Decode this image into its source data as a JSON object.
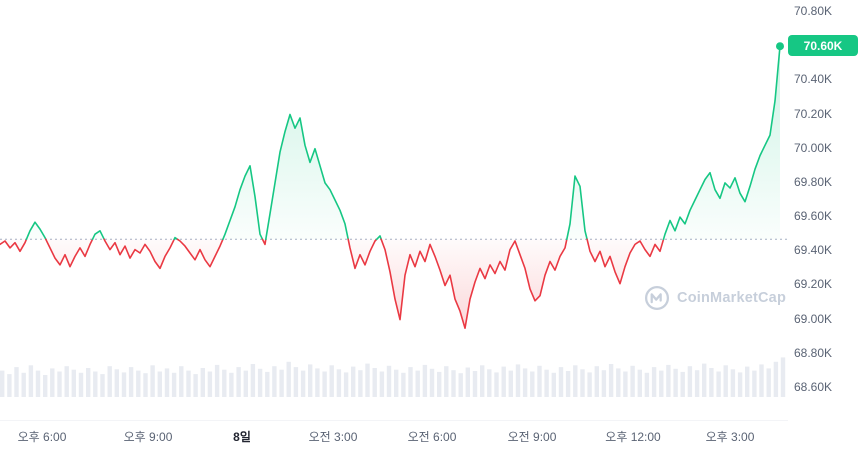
{
  "watermark": {
    "text": "CoinMarketCap"
  },
  "chart_data": {
    "type": "line",
    "title": "",
    "current_price_label": "70.60K",
    "current_price_value": 70.6,
    "baseline_value": 69.47,
    "unit": "K",
    "grid": "off",
    "legend": "none",
    "y_ticks": [
      {
        "label": "70.80K",
        "value": 70.8
      },
      {
        "label": "70.60K",
        "value": 70.6
      },
      {
        "label": "70.40K",
        "value": 70.4
      },
      {
        "label": "70.20K",
        "value": 70.2
      },
      {
        "label": "70.00K",
        "value": 70.0
      },
      {
        "label": "69.80K",
        "value": 69.8
      },
      {
        "label": "69.60K",
        "value": 69.6
      },
      {
        "label": "69.40K",
        "value": 69.4
      },
      {
        "label": "69.20K",
        "value": 69.2
      },
      {
        "label": "69.00K",
        "value": 69.0
      },
      {
        "label": "68.80K",
        "value": 68.8
      },
      {
        "label": "68.60K",
        "value": 68.6
      }
    ],
    "x_ticks": [
      {
        "label": "오후 6:00",
        "pos": 0.053,
        "bold": false
      },
      {
        "label": "오후 9:00",
        "pos": 0.188,
        "bold": false
      },
      {
        "label": "8일",
        "pos": 0.307,
        "bold": true
      },
      {
        "label": "오전 3:00",
        "pos": 0.423,
        "bold": false
      },
      {
        "label": "오전 6:00",
        "pos": 0.548,
        "bold": false
      },
      {
        "label": "오전 9:00",
        "pos": 0.675,
        "bold": false
      },
      {
        "label": "오후 12:00",
        "pos": 0.803,
        "bold": false
      },
      {
        "label": "오후 3:00",
        "pos": 0.926,
        "bold": false
      }
    ],
    "prices": [
      69.44,
      69.46,
      69.42,
      69.45,
      69.4,
      69.45,
      69.52,
      69.57,
      69.53,
      69.48,
      69.42,
      69.36,
      69.32,
      69.38,
      69.31,
      69.37,
      69.42,
      69.37,
      69.44,
      69.5,
      69.52,
      69.46,
      69.41,
      69.45,
      69.38,
      69.43,
      69.36,
      69.41,
      69.39,
      69.44,
      69.4,
      69.34,
      69.3,
      69.37,
      69.42,
      69.48,
      69.46,
      69.43,
      69.39,
      69.35,
      69.41,
      69.35,
      69.31,
      69.37,
      69.43,
      69.5,
      69.58,
      69.66,
      69.76,
      69.84,
      69.9,
      69.72,
      69.5,
      69.44,
      69.62,
      69.8,
      69.98,
      70.1,
      70.2,
      70.12,
      70.18,
      70.02,
      69.92,
      70.0,
      69.9,
      69.8,
      69.76,
      69.7,
      69.64,
      69.56,
      69.42,
      69.3,
      69.38,
      69.32,
      69.4,
      69.46,
      69.49,
      69.41,
      69.28,
      69.12,
      69.0,
      69.26,
      69.38,
      69.31,
      69.4,
      69.34,
      69.44,
      69.37,
      69.29,
      69.2,
      69.26,
      69.12,
      69.05,
      68.95,
      69.12,
      69.22,
      69.3,
      69.24,
      69.32,
      69.27,
      69.34,
      69.29,
      69.41,
      69.46,
      69.38,
      69.3,
      69.18,
      69.11,
      69.14,
      69.26,
      69.34,
      69.29,
      69.37,
      69.42,
      69.56,
      69.84,
      69.78,
      69.52,
      69.4,
      69.34,
      69.4,
      69.31,
      69.37,
      69.28,
      69.21,
      69.31,
      69.39,
      69.44,
      69.46,
      69.41,
      69.37,
      69.44,
      69.4,
      69.5,
      69.58,
      69.52,
      69.6,
      69.56,
      69.64,
      69.7,
      69.76,
      69.82,
      69.86,
      69.76,
      69.71,
      69.8,
      69.77,
      69.83,
      69.74,
      69.69,
      69.78,
      69.88,
      69.96,
      70.02,
      70.08,
      70.28,
      70.6
    ],
    "volume": [
      0.6,
      0.52,
      0.68,
      0.55,
      0.72,
      0.6,
      0.5,
      0.65,
      0.58,
      0.7,
      0.62,
      0.55,
      0.66,
      0.58,
      0.52,
      0.7,
      0.63,
      0.56,
      0.68,
      0.6,
      0.54,
      0.72,
      0.58,
      0.65,
      0.55,
      0.7,
      0.6,
      0.52,
      0.66,
      0.58,
      0.73,
      0.62,
      0.55,
      0.68,
      0.6,
      0.75,
      0.64,
      0.57,
      0.7,
      0.62,
      0.8,
      0.68,
      0.6,
      0.74,
      0.65,
      0.58,
      0.72,
      0.63,
      0.56,
      0.69,
      0.61,
      0.76,
      0.66,
      0.58,
      0.71,
      0.62,
      0.55,
      0.68,
      0.6,
      0.73,
      0.64,
      0.57,
      0.7,
      0.61,
      0.54,
      0.67,
      0.59,
      0.72,
      0.63,
      0.56,
      0.69,
      0.6,
      0.74,
      0.65,
      0.58,
      0.71,
      0.62,
      0.55,
      0.68,
      0.59,
      0.72,
      0.63,
      0.56,
      0.7,
      0.61,
      0.75,
      0.65,
      0.58,
      0.71,
      0.62,
      0.55,
      0.68,
      0.6,
      0.73,
      0.64,
      0.57,
      0.7,
      0.61,
      0.76,
      0.66,
      0.58,
      0.72,
      0.63,
      0.56,
      0.69,
      0.6,
      0.74,
      0.65,
      0.8,
      0.9
    ],
    "colors": {
      "up": "#16c784",
      "down": "#ea3943",
      "volume": "#e8ebf1",
      "baseline": "#a6b0c3",
      "axis_text": "#5a6374",
      "axis_text_strong": "#222531",
      "badge_bg": "#16c784",
      "badge_text": "#ffffff",
      "watermark": "#c7cfdb"
    }
  }
}
